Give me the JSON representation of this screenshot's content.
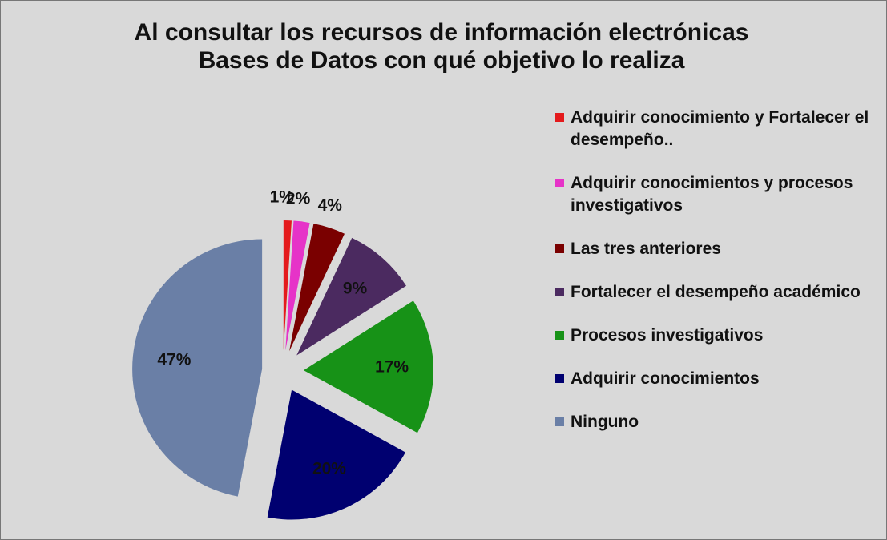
{
  "chart_data": {
    "type": "pie",
    "title": "Al consultar  los recursos de información electrónicas  Bases de Datos con qué objetivo lo realiza",
    "categories": [
      "Adquirir conocimiento y Fortalecer el desempeño..",
      "Adquirir conocimientos y procesos investigativos",
      "Las tres anteriores",
      "Fortalecer  el desempeño académico",
      "Procesos investigativos",
      "Adquirir conocimientos",
      "Ninguno"
    ],
    "values": [
      1,
      2,
      4,
      9,
      17,
      20,
      47
    ],
    "value_labels": [
      "1%",
      "2%",
      "4%",
      "9%",
      "17%",
      "20%",
      "47%"
    ],
    "colors": [
      "#e41a1c",
      "#e633c8",
      "#7a0000",
      "#4b2a60",
      "#179217",
      "#000070",
      "#6a7fa6"
    ],
    "legend": "right"
  }
}
